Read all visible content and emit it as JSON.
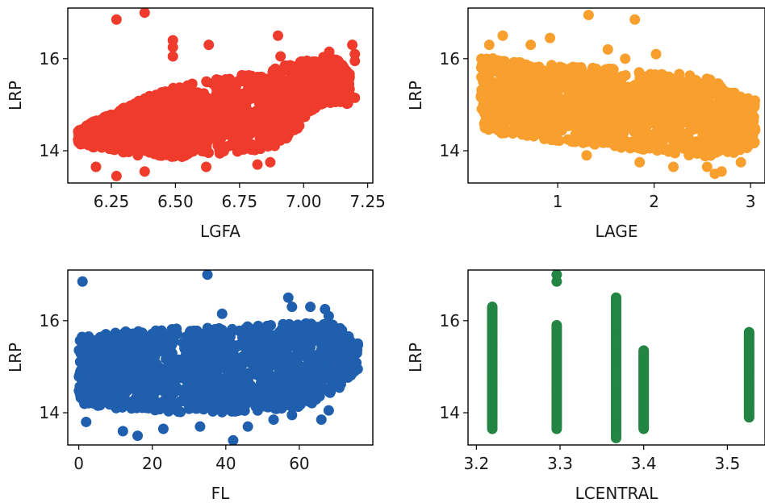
{
  "chart_data": [
    {
      "type": "scatter",
      "xlabel": "LGFA",
      "ylabel": "LRP",
      "xlim": [
        6.08,
        7.27
      ],
      "ylim": [
        13.3,
        17.1
      ],
      "xticks": [
        "6.25",
        "6.50",
        "6.75",
        "7.00",
        "7.25"
      ],
      "xtick_values": [
        6.25,
        6.5,
        6.75,
        7.0,
        7.25
      ],
      "yticks": [
        "14",
        "16"
      ],
      "ytick_values": [
        14,
        16
      ],
      "color": "#ef3b2c",
      "bulk_band": {
        "x": [
          6.12,
          6.2,
          6.3,
          6.4,
          6.5,
          6.6,
          6.7,
          6.8,
          6.9,
          6.95,
          7.0,
          7.05,
          7.12,
          7.18
        ],
        "y_low": [
          14.15,
          14.05,
          13.95,
          13.85,
          13.85,
          13.9,
          13.95,
          14.0,
          14.1,
          14.3,
          14.6,
          14.9,
          15.05,
          15.0
        ],
        "y_high": [
          14.45,
          14.7,
          14.95,
          15.2,
          15.4,
          15.5,
          15.6,
          15.7,
          15.8,
          15.9,
          15.95,
          16.0,
          16.1,
          15.7
        ]
      },
      "outliers": [
        [
          6.27,
          16.85
        ],
        [
          6.38,
          17.0
        ],
        [
          6.49,
          16.4
        ],
        [
          6.49,
          16.25
        ],
        [
          6.49,
          16.05
        ],
        [
          6.63,
          16.3
        ],
        [
          6.9,
          16.5
        ],
        [
          6.91,
          16.05
        ],
        [
          7.1,
          16.15
        ],
        [
          7.19,
          16.3
        ],
        [
          7.2,
          16.1
        ],
        [
          7.2,
          15.95
        ],
        [
          6.27,
          13.45
        ],
        [
          6.19,
          13.65
        ],
        [
          6.38,
          13.55
        ],
        [
          6.62,
          13.65
        ],
        [
          6.82,
          13.7
        ],
        [
          6.87,
          13.75
        ],
        [
          7.2,
          15.15
        ]
      ]
    },
    {
      "type": "scatter",
      "xlabel": "LAGE",
      "ylabel": "LRP",
      "xlim": [
        0.07,
        3.15
      ],
      "ylim": [
        13.3,
        17.1
      ],
      "xticks": [
        "1",
        "2",
        "3"
      ],
      "xtick_values": [
        1,
        2,
        3
      ],
      "yticks": [
        "14",
        "16"
      ],
      "ytick_values": [
        14,
        16
      ],
      "color": "#f89f2e",
      "bulk_band": {
        "x": [
          0.2,
          0.5,
          1.0,
          1.5,
          2.0,
          2.3,
          2.6,
          2.8,
          3.05
        ],
        "y_low": [
          14.45,
          14.35,
          14.2,
          14.1,
          14.0,
          13.9,
          13.85,
          13.9,
          14.1
        ],
        "y_high": [
          16.05,
          15.95,
          15.85,
          15.8,
          15.75,
          15.7,
          15.55,
          15.3,
          15.1
        ]
      },
      "outliers": [
        [
          0.29,
          16.3
        ],
        [
          0.43,
          16.5
        ],
        [
          0.72,
          16.3
        ],
        [
          0.92,
          16.45
        ],
        [
          1.32,
          16.95
        ],
        [
          1.52,
          16.2
        ],
        [
          1.8,
          16.85
        ],
        [
          2.02,
          16.1
        ],
        [
          1.7,
          16.0
        ],
        [
          1.3,
          13.9
        ],
        [
          1.85,
          13.75
        ],
        [
          2.2,
          13.65
        ],
        [
          2.55,
          13.65
        ],
        [
          2.7,
          13.55
        ],
        [
          2.9,
          13.75
        ],
        [
          2.63,
          13.5
        ]
      ]
    },
    {
      "type": "scatter",
      "xlabel": "FL",
      "ylabel": "LRP",
      "xlim": [
        -3,
        80
      ],
      "ylim": [
        13.3,
        17.1
      ],
      "xticks": [
        "0",
        "20",
        "40",
        "60"
      ],
      "xtick_values": [
        0,
        20,
        40,
        60
      ],
      "yticks": [
        "14",
        "16"
      ],
      "ytick_values": [
        14,
        16
      ],
      "color": "#1f5fad",
      "bulk_band": {
        "x": [
          0,
          10,
          20,
          30,
          40,
          50,
          60,
          68,
          72,
          76
        ],
        "y_low": [
          14.2,
          14.1,
          14.05,
          14.0,
          14.0,
          14.05,
          14.1,
          14.35,
          14.6,
          14.95
        ],
        "y_high": [
          15.65,
          15.75,
          15.8,
          15.85,
          15.85,
          15.9,
          15.95,
          16.0,
          15.8,
          15.5
        ]
      },
      "outliers": [
        [
          1,
          16.85
        ],
        [
          35,
          17.0
        ],
        [
          39,
          16.15
        ],
        [
          57,
          16.5
        ],
        [
          58,
          16.3
        ],
        [
          63,
          16.3
        ],
        [
          67,
          16.25
        ],
        [
          68,
          16.1
        ],
        [
          2,
          13.8
        ],
        [
          12,
          13.6
        ],
        [
          16,
          13.5
        ],
        [
          23,
          13.65
        ],
        [
          33,
          13.7
        ],
        [
          42,
          13.4
        ],
        [
          46,
          13.7
        ],
        [
          53,
          13.85
        ],
        [
          55,
          14.1
        ],
        [
          58,
          13.95
        ],
        [
          66,
          13.85
        ],
        [
          68,
          14.05
        ]
      ]
    },
    {
      "type": "scatter",
      "xlabel": "LCENTRAL",
      "ylabel": "LRP",
      "xlim": [
        3.19,
        3.545
      ],
      "ylim": [
        13.3,
        17.1
      ],
      "xticks": [
        "3.2",
        "3.3",
        "3.4",
        "3.5"
      ],
      "xtick_values": [
        3.2,
        3.3,
        3.4,
        3.5
      ],
      "yticks": [
        "14",
        "16"
      ],
      "ytick_values": [
        14,
        16
      ],
      "color": "#238443",
      "columns": [
        {
          "x": 3.219,
          "y_min": 13.65,
          "y_max": 16.3
        },
        {
          "x": 3.296,
          "y_min": 13.65,
          "y_max": 15.9
        },
        {
          "x": 3.367,
          "y_min": 13.5,
          "y_max": 16.5
        },
        {
          "x": 3.4,
          "y_min": 13.65,
          "y_max": 15.35
        },
        {
          "x": 3.526,
          "y_min": 13.9,
          "y_max": 15.75
        }
      ],
      "outliers": [
        [
          3.296,
          17.0
        ],
        [
          3.296,
          16.85
        ],
        [
          3.367,
          13.45
        ]
      ]
    }
  ]
}
